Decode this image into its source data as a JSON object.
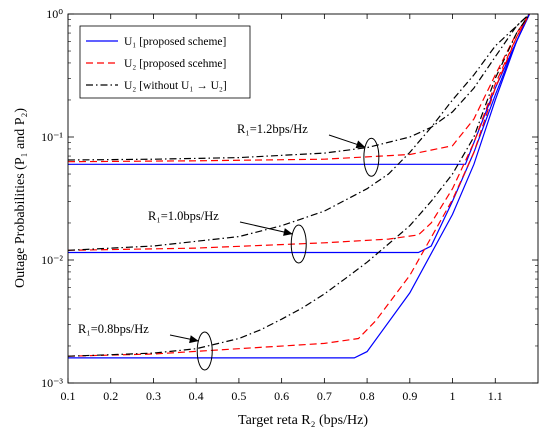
{
  "chart_data": {
    "type": "line",
    "title": "",
    "xlabel": "Target reta R₂ (bps/Hz)",
    "ylabel": "Outage Probabilities (P₁ and P₂)",
    "xlim": [
      0.1,
      1.2
    ],
    "ylim": [
      0.001,
      1
    ],
    "yscale": "log",
    "xticks": [
      "0.1",
      "0.2",
      "0.3",
      "0.4",
      "0.5",
      "0.6",
      "0.7",
      "0.8",
      "0.9",
      "1",
      "1.1"
    ],
    "yticks": [
      "10⁻³",
      "10⁻²",
      "10⁻¹",
      "10⁰"
    ],
    "legend_position": "top-left",
    "legend": [
      {
        "label": "U₁ [proposed scheme]",
        "color": "#0000ff",
        "dash": "solid"
      },
      {
        "label": "U₂ [proposed scehme]",
        "color": "#ff0000",
        "dash": "dashed"
      },
      {
        "label": "U₂ [without U₁ → U₂]",
        "color": "#000000",
        "dash": "dashdot"
      }
    ],
    "annotations": [
      {
        "text": "R₁=1.2bps/Hz",
        "at": [
          0.81,
          0.0685
        ]
      },
      {
        "text": "R₁=1.0bps/Hz",
        "at": [
          0.64,
          0.0135
        ]
      },
      {
        "text": "R₁=0.8bps/Hz",
        "at": [
          0.42,
          0.00182
        ]
      }
    ],
    "series": [
      {
        "group": "R1=1.2",
        "style": 0,
        "points": [
          [
            0.1,
            0.06
          ],
          [
            0.5,
            0.06
          ],
          [
            0.8,
            0.06
          ],
          [
            1.03,
            0.06
          ],
          [
            1.1,
            0.25
          ],
          [
            1.15,
            0.6
          ],
          [
            1.18,
            1.0
          ]
        ]
      },
      {
        "group": "R1=1.2",
        "style": 1,
        "points": [
          [
            0.1,
            0.063
          ],
          [
            0.4,
            0.064
          ],
          [
            0.7,
            0.066
          ],
          [
            0.9,
            0.072
          ],
          [
            1.0,
            0.085
          ],
          [
            1.05,
            0.14
          ],
          [
            1.1,
            0.32
          ],
          [
            1.15,
            0.7
          ],
          [
            1.18,
            1.0
          ]
        ]
      },
      {
        "group": "R1=1.2",
        "style": 2,
        "points": [
          [
            0.1,
            0.065
          ],
          [
            0.3,
            0.066
          ],
          [
            0.5,
            0.068
          ],
          [
            0.7,
            0.074
          ],
          [
            0.8,
            0.082
          ],
          [
            0.9,
            0.1
          ],
          [
            0.95,
            0.12
          ],
          [
            1.0,
            0.16
          ],
          [
            1.05,
            0.25
          ],
          [
            1.1,
            0.45
          ],
          [
            1.15,
            0.8
          ],
          [
            1.18,
            1.0
          ]
        ]
      },
      {
        "group": "R1=1.0",
        "style": 0,
        "points": [
          [
            0.1,
            0.0115
          ],
          [
            0.5,
            0.0115
          ],
          [
            0.92,
            0.0115
          ],
          [
            0.95,
            0.013
          ],
          [
            1.0,
            0.03
          ],
          [
            1.05,
            0.075
          ],
          [
            1.1,
            0.22
          ],
          [
            1.15,
            0.6
          ],
          [
            1.18,
            1.0
          ]
        ]
      },
      {
        "group": "R1=1.0",
        "style": 1,
        "points": [
          [
            0.1,
            0.012
          ],
          [
            0.4,
            0.0125
          ],
          [
            0.7,
            0.0138
          ],
          [
            0.85,
            0.0148
          ],
          [
            0.92,
            0.016
          ],
          [
            0.95,
            0.02
          ],
          [
            1.0,
            0.038
          ],
          [
            1.05,
            0.09
          ],
          [
            1.1,
            0.27
          ],
          [
            1.15,
            0.65
          ],
          [
            1.18,
            1.0
          ]
        ]
      },
      {
        "group": "R1=1.0",
        "style": 2,
        "points": [
          [
            0.1,
            0.012
          ],
          [
            0.3,
            0.013
          ],
          [
            0.5,
            0.0155
          ],
          [
            0.6,
            0.019
          ],
          [
            0.7,
            0.025
          ],
          [
            0.8,
            0.038
          ],
          [
            0.85,
            0.05
          ],
          [
            0.9,
            0.075
          ],
          [
            0.95,
            0.12
          ],
          [
            1.0,
            0.2
          ],
          [
            1.05,
            0.32
          ],
          [
            1.1,
            0.55
          ],
          [
            1.18,
            1.0
          ]
        ]
      },
      {
        "group": "R1=0.8",
        "style": 0,
        "points": [
          [
            0.1,
            0.0016
          ],
          [
            0.5,
            0.0016
          ],
          [
            0.77,
            0.0016
          ],
          [
            0.8,
            0.0018
          ],
          [
            0.9,
            0.0054
          ],
          [
            1.0,
            0.0235
          ],
          [
            1.05,
            0.06
          ],
          [
            1.1,
            0.2
          ],
          [
            1.15,
            0.6
          ],
          [
            1.18,
            1.0
          ]
        ]
      },
      {
        "group": "R1=0.8",
        "style": 1,
        "points": [
          [
            0.1,
            0.00165
          ],
          [
            0.3,
            0.00172
          ],
          [
            0.5,
            0.0019
          ],
          [
            0.7,
            0.0021
          ],
          [
            0.78,
            0.0023
          ],
          [
            0.82,
            0.0032
          ],
          [
            0.9,
            0.0075
          ],
          [
            1.0,
            0.031
          ],
          [
            1.05,
            0.075
          ],
          [
            1.1,
            0.25
          ],
          [
            1.15,
            0.65
          ],
          [
            1.18,
            1.0
          ]
        ]
      },
      {
        "group": "R1=0.8",
        "style": 2,
        "points": [
          [
            0.1,
            0.00165
          ],
          [
            0.2,
            0.0017
          ],
          [
            0.3,
            0.00175
          ],
          [
            0.4,
            0.0019
          ],
          [
            0.5,
            0.0023
          ],
          [
            0.55,
            0.0027
          ],
          [
            0.6,
            0.0033
          ],
          [
            0.65,
            0.0041
          ],
          [
            0.7,
            0.0053
          ],
          [
            0.75,
            0.0071
          ],
          [
            0.8,
            0.0096
          ],
          [
            0.85,
            0.0135
          ],
          [
            0.9,
            0.019
          ],
          [
            0.95,
            0.03
          ],
          [
            1.0,
            0.05
          ],
          [
            1.05,
            0.1
          ],
          [
            1.1,
            0.3
          ],
          [
            1.15,
            0.7
          ],
          [
            1.18,
            1.0
          ]
        ]
      }
    ]
  }
}
